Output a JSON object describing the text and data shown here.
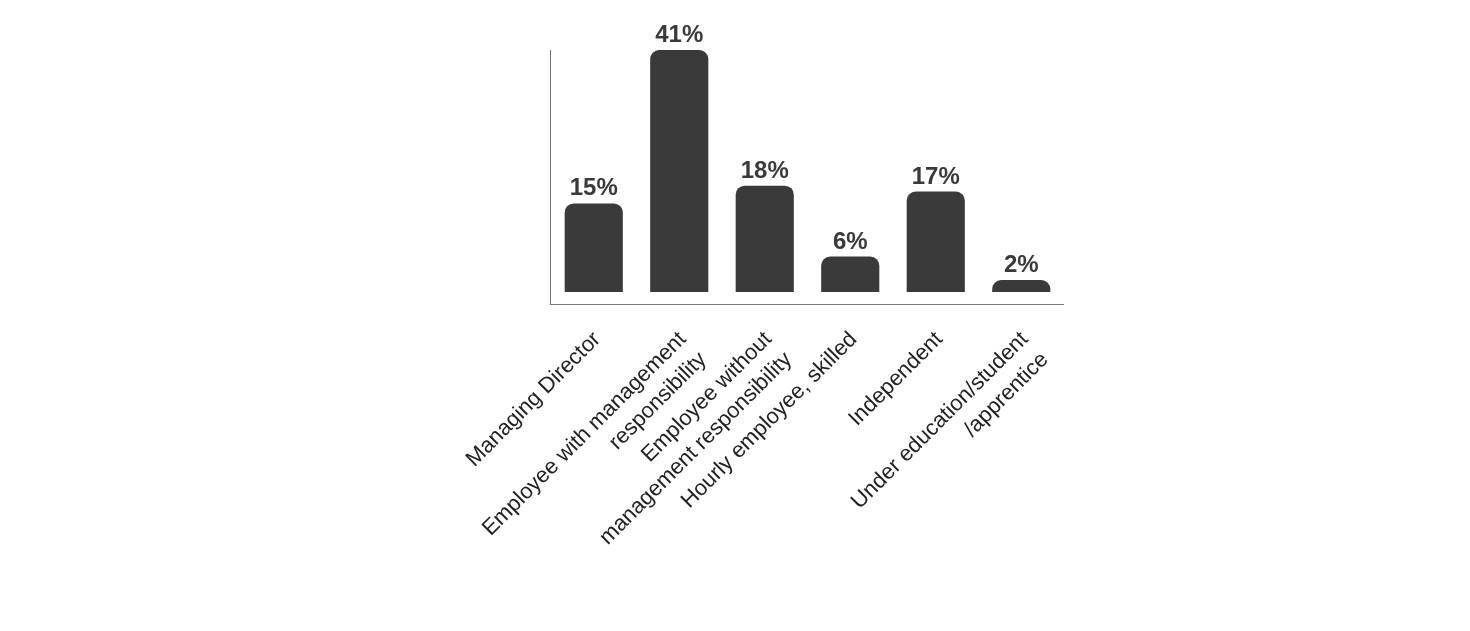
{
  "chart_data": {
    "type": "bar",
    "categories": [
      "Managing Director",
      "Employee with management\nresponsibility",
      "Employee without\nmanagement responsibility",
      "Hourly employee, skilled",
      "Independent",
      "Under education/student\n/apprentice"
    ],
    "values": [
      15,
      41,
      18,
      6,
      17,
      2
    ],
    "value_labels": [
      "15%",
      "41%",
      "18%",
      "6%",
      "17%",
      "2%"
    ],
    "color": "#3a3a3a"
  }
}
